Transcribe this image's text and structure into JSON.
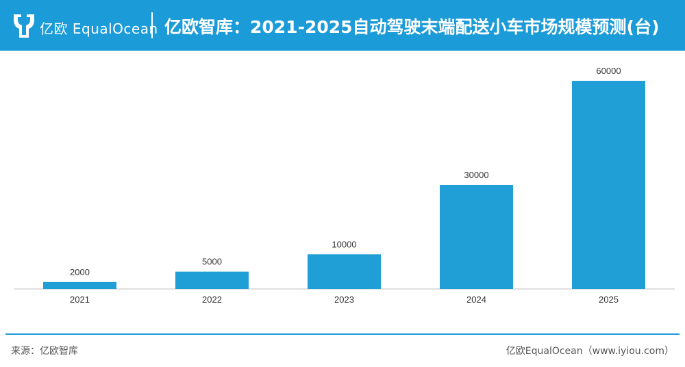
{
  "header": {
    "brand": "亿欧 EqualOcean",
    "title": "亿欧智库：2021-2025自动驾驶末端配送小车市场规模预测(台)"
  },
  "colors": {
    "accent": "#1b9bd8",
    "bar": "#1f9fd5"
  },
  "chart_data": {
    "type": "bar",
    "categories": [
      "2021",
      "2022",
      "2023",
      "2024",
      "2025"
    ],
    "values": [
      2000,
      5000,
      10000,
      30000,
      60000
    ],
    "data_labels": [
      "2000",
      "5000",
      "10000",
      "30000",
      "60000"
    ],
    "ylim": [
      0,
      60000
    ],
    "grid": false,
    "legend": "none"
  },
  "footer": {
    "source": "来源：亿欧智库",
    "credit": "亿欧EqualOcean（www.iyiou.com）"
  }
}
